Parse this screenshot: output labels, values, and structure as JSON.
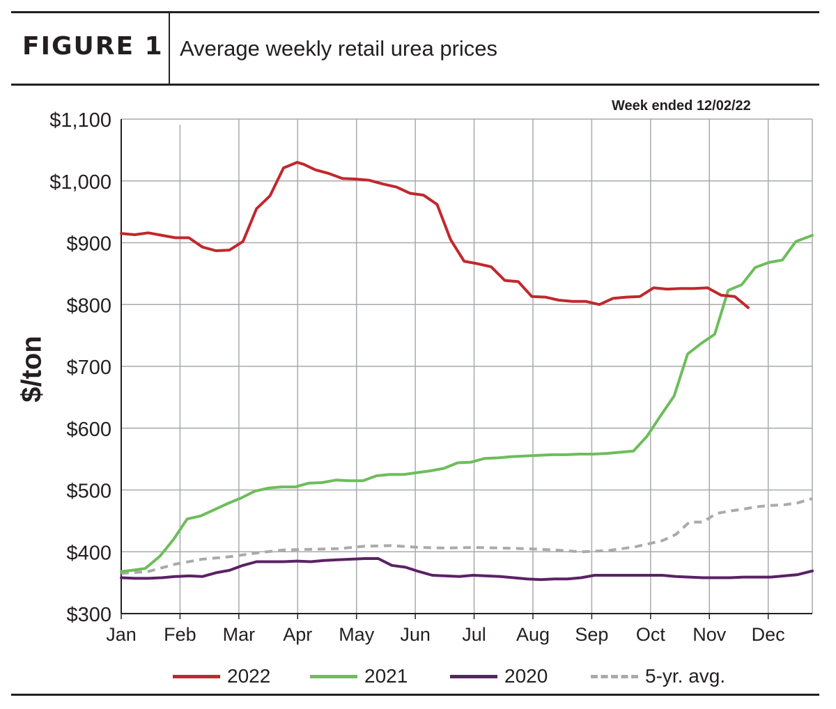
{
  "header": {
    "figure_label": "FIGURE 1",
    "title": "Average weekly retail urea prices"
  },
  "note": "Week ended 12/02/22",
  "chart_data": {
    "type": "line",
    "title": "Average weekly retail urea prices",
    "ylabel": "$/ton",
    "xlabel": "",
    "ylim": [
      300,
      1100
    ],
    "yticks": [
      300,
      400,
      500,
      600,
      700,
      800,
      900,
      1000,
      1100
    ],
    "ytick_labels": [
      "$300",
      "$400",
      "$500",
      "$600",
      "$700",
      "$800",
      "$900",
      "$1,000",
      "$1,100"
    ],
    "x_unit": "month index (0 = Jan, 11 = Dec)",
    "xlim": [
      0,
      11.75
    ],
    "months": [
      "Jan",
      "Feb",
      "Mar",
      "Apr",
      "May",
      "Jun",
      "Jul",
      "Aug",
      "Sep",
      "Oct",
      "Nov",
      "Dec"
    ],
    "grid": true,
    "legend_position": "bottom",
    "series": [
      {
        "name": "2022",
        "color": "#c1272d",
        "dashed": false,
        "x": [
          0,
          0.23,
          0.46,
          0.69,
          0.92,
          1.15,
          1.38,
          1.61,
          1.84,
          2.07,
          2.3,
          2.53,
          2.76,
          2.99,
          3.1,
          3.3,
          3.53,
          3.76,
          3.99,
          4.22,
          4.45,
          4.68,
          4.91,
          5.14,
          5.37,
          5.6,
          5.83,
          6.06,
          6.29,
          6.52,
          6.75,
          6.98,
          7.21,
          7.44,
          7.67,
          7.9,
          8.13,
          8.36,
          8.59,
          8.82,
          9.05,
          9.28,
          9.51,
          9.74,
          9.97,
          10.2,
          10.43,
          10.66
        ],
        "values": [
          915,
          913,
          916,
          912,
          908,
          908,
          893,
          887,
          888,
          902,
          955,
          976,
          1021,
          1030,
          1027,
          1018,
          1012,
          1004,
          1003,
          1001,
          995,
          990,
          980,
          977,
          962,
          905,
          870,
          866,
          861,
          839,
          837,
          813,
          812,
          807,
          805,
          805,
          800,
          810,
          812,
          813,
          827,
          825,
          826,
          826,
          827,
          815,
          813,
          795
        ]
      },
      {
        "name": "2021",
        "color": "#6dbd5b",
        "dashed": false,
        "x": [
          0,
          0.18,
          0.41,
          0.66,
          0.89,
          1.12,
          1.35,
          1.58,
          1.81,
          2.04,
          2.27,
          2.5,
          2.73,
          2.96,
          3.19,
          3.42,
          3.65,
          3.88,
          4.11,
          4.34,
          4.57,
          4.8,
          5.03,
          5.26,
          5.49,
          5.72,
          5.95,
          6.18,
          6.41,
          6.64,
          6.87,
          7.1,
          7.33,
          7.56,
          7.79,
          8.02,
          8.25,
          8.48,
          8.71,
          8.94,
          9.17,
          9.4,
          9.63,
          9.86,
          10.09,
          10.32,
          10.55,
          10.78,
          11.01,
          11.24,
          11.47,
          11.75
        ],
        "values": [
          368,
          370,
          373,
          393,
          420,
          453,
          458,
          468,
          478,
          487,
          498,
          503,
          505,
          505,
          511,
          512,
          516,
          515,
          515,
          523,
          525,
          525,
          528,
          531,
          535,
          544,
          545,
          551,
          552,
          554,
          555,
          556,
          557,
          557,
          558,
          558,
          559,
          561,
          563,
          587,
          620,
          652,
          720,
          737,
          752,
          823,
          832,
          860,
          868,
          872,
          902,
          912
        ]
      },
      {
        "name": "2020",
        "color": "#5b2166",
        "dashed": false,
        "x": [
          0,
          0.23,
          0.46,
          0.69,
          0.92,
          1.15,
          1.38,
          1.61,
          1.84,
          2.07,
          2.3,
          2.53,
          2.76,
          2.99,
          3.22,
          3.45,
          3.68,
          3.91,
          4.14,
          4.37,
          4.6,
          4.83,
          5.06,
          5.29,
          5.52,
          5.75,
          5.98,
          6.21,
          6.44,
          6.67,
          6.9,
          7.13,
          7.36,
          7.59,
          7.82,
          8.05,
          8.28,
          8.51,
          8.74,
          8.97,
          9.2,
          9.43,
          9.66,
          9.89,
          10.12,
          10.35,
          10.58,
          10.81,
          11.04,
          11.27,
          11.5,
          11.75
        ],
        "values": [
          358,
          357,
          357,
          358,
          360,
          361,
          360,
          366,
          370,
          378,
          384,
          384,
          384,
          385,
          384,
          386,
          387,
          388,
          389,
          389,
          378,
          375,
          368,
          362,
          361,
          360,
          362,
          361,
          360,
          358,
          356,
          355,
          356,
          356,
          358,
          362,
          362,
          362,
          362,
          362,
          362,
          360,
          359,
          358,
          358,
          358,
          359,
          359,
          359,
          361,
          363,
          369
        ]
      },
      {
        "name": "5-yr. avg.",
        "color": "#aaaaaa",
        "dashed": true,
        "x": [
          0,
          0.46,
          0.92,
          1.38,
          1.84,
          2.3,
          2.76,
          3.22,
          3.68,
          4.14,
          4.6,
          5.06,
          5.52,
          5.98,
          6.44,
          6.9,
          7.36,
          7.82,
          8.28,
          8.74,
          9.2,
          9.43,
          9.66,
          9.89,
          10.12,
          10.35,
          10.58,
          10.81,
          11.04,
          11.27,
          11.5,
          11.75
        ],
        "values": [
          365,
          368,
          380,
          388,
          392,
          398,
          403,
          404,
          405,
          409,
          410,
          407,
          406,
          407,
          406,
          405,
          403,
          400,
          402,
          408,
          418,
          428,
          448,
          448,
          462,
          466,
          469,
          473,
          475,
          476,
          479,
          486
        ]
      }
    ]
  }
}
